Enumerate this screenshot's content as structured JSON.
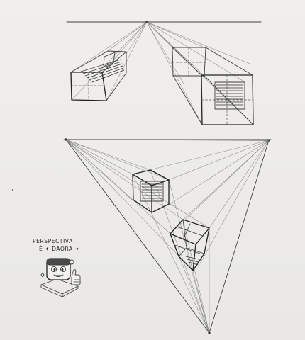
{
  "caption": {
    "line1": "PERSPECTIVA",
    "line2": "É ✦ DAORA ✦"
  },
  "colors": {
    "paper": "#eeecea",
    "graphite": "#3d3d3d"
  },
  "icons": {
    "mascot": "cartoon-tv-head-thumbs-up"
  }
}
